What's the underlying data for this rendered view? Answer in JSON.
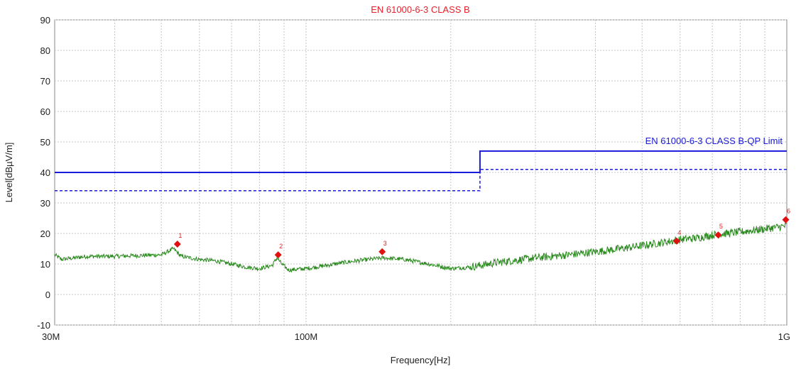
{
  "chart_data": {
    "type": "line",
    "title": "EN 61000-6-3 CLASS B",
    "xlabel": "Frequency[Hz]",
    "ylabel": "Level[dBµV/m]",
    "x_scale": "log",
    "xlim": [
      30000000,
      1000000000
    ],
    "ylim": [
      -10,
      90
    ],
    "x_ticks": [
      {
        "value": 30000000,
        "label": "30M"
      },
      {
        "value": 100000000,
        "label": "100M"
      },
      {
        "value": 1000000000,
        "label": "1G"
      }
    ],
    "y_ticks": [
      -10,
      0,
      10,
      20,
      30,
      40,
      50,
      60,
      70,
      80,
      90
    ],
    "grid": true,
    "legend": [
      {
        "name": "EN 61000-6-3 CLASS B-QP Limit",
        "color": "#1a1adc",
        "placement": "top-right"
      }
    ],
    "series": [
      {
        "name": "EN 61000-6-3 CLASS B-QP Limit",
        "color": "#1a1adc",
        "style": "solid",
        "x": [
          30000000,
          230000000,
          230000000,
          1000000000
        ],
        "y": [
          40,
          40,
          47,
          47
        ]
      },
      {
        "name": "",
        "color": "#1a1adc",
        "style": "dashed",
        "x": [
          30000000,
          230000000,
          230000000,
          1000000000
        ],
        "y": [
          34,
          34,
          41,
          41
        ]
      },
      {
        "name": "",
        "color": "#2a8a1e",
        "style": "solid",
        "x": [
          30000000,
          31000000,
          33000000,
          35000000,
          40000000,
          45000000,
          50000000,
          53000000,
          55000000,
          60000000,
          65000000,
          70000000,
          75000000,
          80000000,
          85000000,
          87000000,
          89000000,
          92000000,
          100000000,
          110000000,
          120000000,
          135000000,
          145000000,
          160000000,
          180000000,
          200000000,
          220000000,
          250000000,
          300000000,
          350000000,
          400000000,
          450000000,
          500000000,
          550000000,
          600000000,
          650000000,
          700000000,
          800000000,
          900000000,
          1000000000
        ],
        "y": [
          13,
          11.5,
          12,
          12.5,
          12.5,
          12.8,
          13,
          15,
          12.5,
          11.5,
          11,
          10,
          9,
          8.5,
          9.5,
          12,
          10,
          8,
          8.5,
          9.5,
          10.5,
          11.5,
          12,
          11.5,
          10,
          8.5,
          9,
          10.5,
          12,
          13,
          14,
          15,
          16,
          17,
          18,
          18.5,
          19.5,
          20.5,
          21.5,
          22.5
        ]
      }
    ],
    "markers": [
      {
        "label": "1",
        "x": 54000000,
        "y": 16.5
      },
      {
        "label": "2",
        "x": 87500000,
        "y": 13
      },
      {
        "label": "3",
        "x": 144000000,
        "y": 14
      },
      {
        "label": "4",
        "x": 590000000,
        "y": 17.5
      },
      {
        "label": "5",
        "x": 720000000,
        "y": 19.5
      },
      {
        "label": "6",
        "x": 995000000,
        "y": 24.5
      }
    ]
  }
}
